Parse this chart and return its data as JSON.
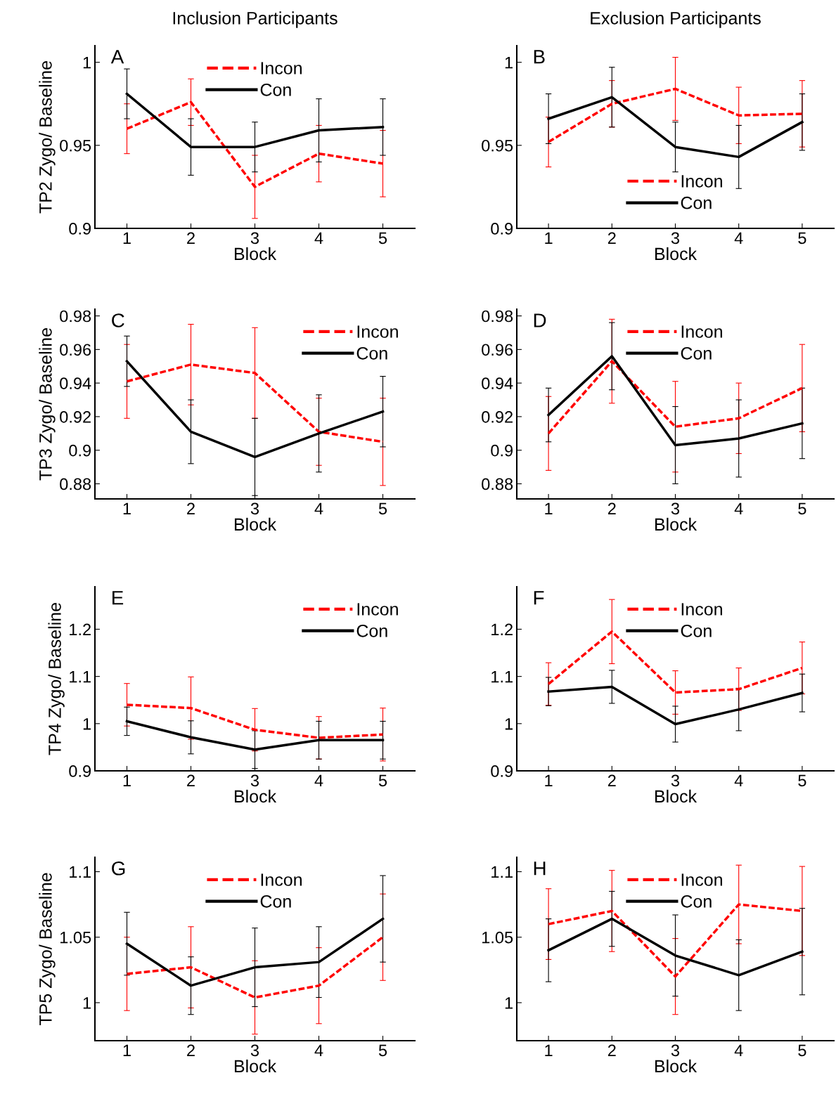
{
  "chart_data": [
    {
      "type": "line",
      "title": "Inclusion Participants",
      "ylabel": "TP2 Zygo/ Baseline",
      "xlabel": "Block",
      "annotations": [
        "A"
      ],
      "x": [
        1,
        2,
        3,
        4,
        5
      ],
      "xlim": [
        0.5,
        5.5
      ],
      "xticks": [
        1,
        2,
        3,
        4,
        5
      ],
      "ylim": [
        0.9,
        1.01
      ],
      "yticks": [
        0.9,
        0.95,
        1
      ],
      "legend": "top",
      "grid": false,
      "series": [
        {
          "name": "Incon",
          "color": "#ff0000",
          "line_style": "dashed",
          "values": [
            0.96,
            0.976,
            0.925,
            0.945,
            0.939
          ],
          "errors": [
            0.015,
            0.014,
            0.019,
            0.017,
            0.02
          ]
        },
        {
          "name": "Con",
          "color": "#000000",
          "line_style": "solid",
          "values": [
            0.981,
            0.949,
            0.949,
            0.959,
            0.961
          ],
          "errors": [
            0.015,
            0.017,
            0.015,
            0.019,
            0.017
          ]
        }
      ]
    },
    {
      "type": "line",
      "title": "Exclusion Participants",
      "xlabel": "Block",
      "annotations": [
        "B"
      ],
      "x": [
        1,
        2,
        3,
        4,
        5
      ],
      "xlim": [
        0.5,
        5.5
      ],
      "xticks": [
        1,
        2,
        3,
        4,
        5
      ],
      "ylim": [
        0.9,
        1.01
      ],
      "yticks": [
        0.9,
        0.95,
        1
      ],
      "legend": "bottom",
      "grid": false,
      "series": [
        {
          "name": "Incon",
          "color": "#ff0000",
          "line_style": "dashed",
          "values": [
            0.952,
            0.975,
            0.984,
            0.968,
            0.969
          ],
          "errors": [
            0.015,
            0.014,
            0.019,
            0.017,
            0.02
          ]
        },
        {
          "name": "Con",
          "color": "#000000",
          "line_style": "solid",
          "values": [
            0.966,
            0.979,
            0.949,
            0.943,
            0.964
          ],
          "errors": [
            0.015,
            0.018,
            0.015,
            0.019,
            0.017
          ]
        }
      ]
    },
    {
      "type": "line",
      "ylabel": "TP3 Zygo/ Baseline",
      "xlabel": "Block",
      "annotations": [
        "C"
      ],
      "x": [
        1,
        2,
        3,
        4,
        5
      ],
      "xlim": [
        0.5,
        5.5
      ],
      "xticks": [
        1,
        2,
        3,
        4,
        5
      ],
      "ylim": [
        0.871,
        0.984
      ],
      "yticks": [
        0.88,
        0.9,
        0.92,
        0.94,
        0.96,
        0.98
      ],
      "legend": "top right",
      "grid": false,
      "series": [
        {
          "name": "Incon",
          "color": "#ff0000",
          "line_style": "dashed",
          "values": [
            0.941,
            0.951,
            0.946,
            0.911,
            0.905
          ],
          "errors": [
            0.022,
            0.024,
            0.027,
            0.02,
            0.026
          ]
        },
        {
          "name": "Con",
          "color": "#000000",
          "line_style": "solid",
          "values": [
            0.953,
            0.911,
            0.896,
            0.91,
            0.923
          ],
          "errors": [
            0.015,
            0.019,
            0.023,
            0.023,
            0.021
          ]
        }
      ]
    },
    {
      "type": "line",
      "xlabel": "Block",
      "annotations": [
        "D"
      ],
      "x": [
        1,
        2,
        3,
        4,
        5
      ],
      "xlim": [
        0.5,
        5.5
      ],
      "xticks": [
        1,
        2,
        3,
        4,
        5
      ],
      "ylim": [
        0.871,
        0.984
      ],
      "yticks": [
        0.88,
        0.9,
        0.92,
        0.94,
        0.96,
        0.98
      ],
      "legend": "top",
      "grid": false,
      "series": [
        {
          "name": "Incon",
          "color": "#ff0000",
          "line_style": "dashed",
          "values": [
            0.91,
            0.953,
            0.914,
            0.919,
            0.937
          ],
          "errors": [
            0.022,
            0.025,
            0.027,
            0.021,
            0.026
          ]
        },
        {
          "name": "Con",
          "color": "#000000",
          "line_style": "solid",
          "values": [
            0.921,
            0.956,
            0.903,
            0.907,
            0.916
          ],
          "errors": [
            0.016,
            0.02,
            0.023,
            0.023,
            0.021
          ]
        }
      ]
    },
    {
      "type": "line",
      "ylabel": "TP4 Zygo/ Baseline",
      "xlabel": "Block",
      "annotations": [
        "E"
      ],
      "x": [
        1,
        2,
        3,
        4,
        5
      ],
      "xlim": [
        0.5,
        5.5
      ],
      "xticks": [
        1,
        2,
        3,
        4,
        5
      ],
      "ylim": [
        0.9,
        1.29
      ],
      "yticks": [
        0.9,
        1,
        1.1,
        1.2
      ],
      "legend": "top right",
      "grid": false,
      "series": [
        {
          "name": "Incon",
          "color": "#ff0000",
          "line_style": "dashed",
          "values": [
            1.04,
            1.033,
            0.987,
            0.97,
            0.977
          ],
          "errors": [
            0.045,
            0.066,
            0.045,
            0.045,
            0.056
          ]
        },
        {
          "name": "Con",
          "color": "#000000",
          "line_style": "solid",
          "values": [
            1.005,
            0.971,
            0.945,
            0.965,
            0.965
          ],
          "errors": [
            0.03,
            0.035,
            0.04,
            0.04,
            0.04
          ]
        }
      ]
    },
    {
      "type": "line",
      "xlabel": "Block",
      "annotations": [
        "F"
      ],
      "x": [
        1,
        2,
        3,
        4,
        5
      ],
      "xlim": [
        0.5,
        5.5
      ],
      "xticks": [
        1,
        2,
        3,
        4,
        5
      ],
      "ylim": [
        0.9,
        1.29
      ],
      "yticks": [
        0.9,
        1,
        1.1,
        1.2
      ],
      "legend": "top",
      "grid": false,
      "series": [
        {
          "name": "Incon",
          "color": "#ff0000",
          "line_style": "dashed",
          "values": [
            1.084,
            1.195,
            1.066,
            1.073,
            1.118
          ],
          "errors": [
            0.045,
            0.068,
            0.046,
            0.045,
            0.055
          ]
        },
        {
          "name": "Con",
          "color": "#000000",
          "line_style": "solid",
          "values": [
            1.068,
            1.078,
            0.999,
            1.03,
            1.065
          ],
          "errors": [
            0.03,
            0.035,
            0.038,
            0.045,
            0.04
          ]
        }
      ]
    },
    {
      "type": "line",
      "ylabel": "TP5 Zygo/ Baseline",
      "xlabel": "Block",
      "annotations": [
        "G"
      ],
      "x": [
        1,
        2,
        3,
        4,
        5
      ],
      "xlim": [
        0.5,
        5.5
      ],
      "xticks": [
        1,
        2,
        3,
        4,
        5
      ],
      "ylim": [
        0.971,
        1.111
      ],
      "yticks": [
        1,
        1.05,
        1.1
      ],
      "legend": "top",
      "grid": false,
      "series": [
        {
          "name": "Incon",
          "color": "#ff0000",
          "line_style": "dashed",
          "values": [
            1.022,
            1.027,
            1.004,
            1.013,
            1.05
          ],
          "errors": [
            0.028,
            0.031,
            0.028,
            0.029,
            0.033
          ]
        },
        {
          "name": "Con",
          "color": "#000000",
          "line_style": "solid",
          "values": [
            1.045,
            1.013,
            1.027,
            1.031,
            1.064
          ],
          "errors": [
            0.024,
            0.022,
            0.03,
            0.027,
            0.033
          ]
        }
      ]
    },
    {
      "type": "line",
      "xlabel": "Block",
      "annotations": [
        "H"
      ],
      "x": [
        1,
        2,
        3,
        4,
        5
      ],
      "xlim": [
        0.5,
        5.5
      ],
      "xticks": [
        1,
        2,
        3,
        4,
        5
      ],
      "ylim": [
        0.971,
        1.111
      ],
      "yticks": [
        1,
        1.05,
        1.1
      ],
      "legend": "top",
      "grid": false,
      "series": [
        {
          "name": "Incon",
          "color": "#ff0000",
          "line_style": "dashed",
          "values": [
            1.06,
            1.07,
            1.02,
            1.075,
            1.07
          ],
          "errors": [
            0.027,
            0.031,
            0.029,
            0.03,
            0.034
          ]
        },
        {
          "name": "Con",
          "color": "#000000",
          "line_style": "solid",
          "values": [
            1.04,
            1.064,
            1.036,
            1.021,
            1.039
          ],
          "errors": [
            0.024,
            0.021,
            0.031,
            0.027,
            0.033
          ]
        }
      ]
    }
  ]
}
